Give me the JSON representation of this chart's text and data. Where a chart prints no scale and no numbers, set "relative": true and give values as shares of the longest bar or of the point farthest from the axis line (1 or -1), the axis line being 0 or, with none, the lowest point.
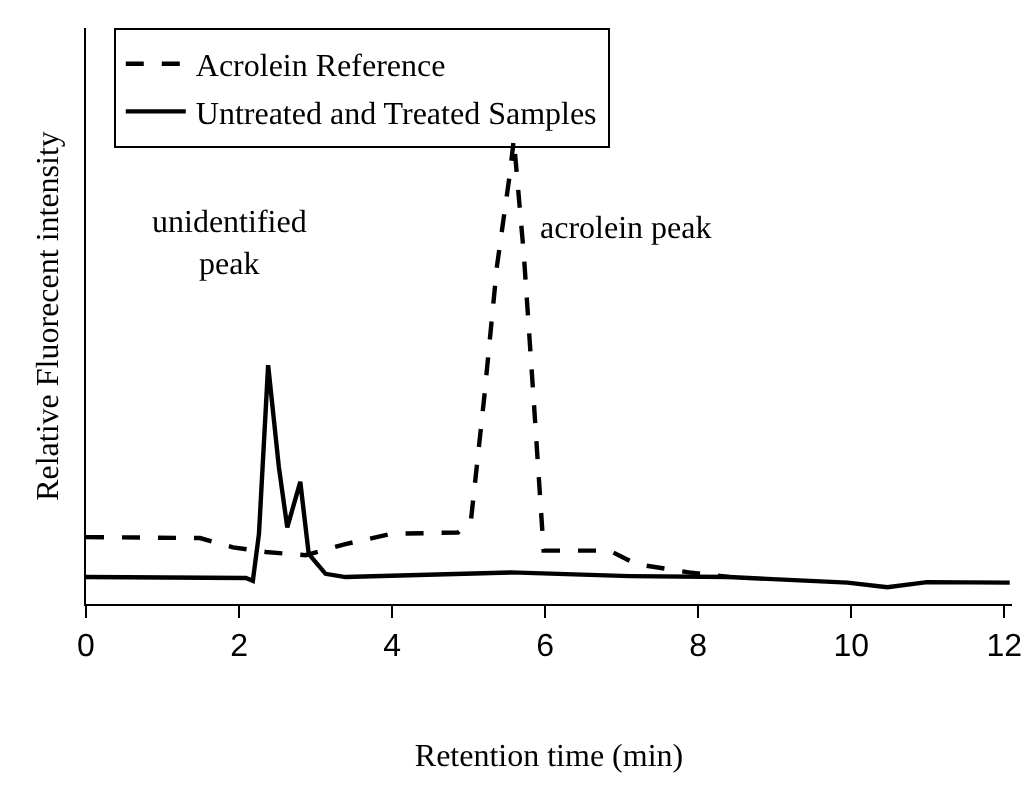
{
  "chart_data": {
    "type": "line",
    "relative": true,
    "xlabel": "Retention time (min)",
    "ylabel": "Relative Fluorecent intensity",
    "xlim": [
      0,
      12.1
    ],
    "xticks": [
      0,
      2,
      4,
      6,
      8,
      10,
      12
    ],
    "legend": "top",
    "grid": false,
    "marker": "none",
    "series": [
      {
        "name": "Acrolein Reference",
        "color": "#000000",
        "line_style": "dashed",
        "x": [
          0,
          1.49,
          1.92,
          2.35,
          2.87,
          3.39,
          3.99,
          4.86,
          5.03,
          5.2,
          5.37,
          5.54,
          5.59,
          5.72,
          5.85,
          5.98,
          6.84,
          7.19,
          7.88,
          8.4
        ],
        "values": [
          0.144,
          0.142,
          0.122,
          0.112,
          0.105,
          0.129,
          0.151,
          0.154,
          0.18,
          0.439,
          0.727,
          0.928,
          1,
          0.755,
          0.439,
          0.115,
          0.115,
          0.086,
          0.068,
          0.058
        ]
      },
      {
        "name": "Untreated and Treated Samples",
        "color": "#000000",
        "line_style": "solid",
        "x": [
          0,
          2.09,
          2.18,
          2.26,
          2.38,
          2.52,
          2.63,
          2.8,
          2.91,
          3.13,
          3.39,
          5.55,
          7.1,
          8.4,
          9.95,
          10.47,
          10.99,
          12.07
        ],
        "values": [
          0.058,
          0.056,
          0.05,
          0.151,
          0.514,
          0.295,
          0.165,
          0.263,
          0.108,
          0.065,
          0.058,
          0.068,
          0.06,
          0.058,
          0.046,
          0.036,
          0.047,
          0.046
        ]
      }
    ],
    "annotations": [
      {
        "text": "unidentified\npeak",
        "x": 2.38,
        "y": 0.514
      },
      {
        "text": "acrolein peak",
        "x": 5.72,
        "y": 0.755
      }
    ]
  }
}
